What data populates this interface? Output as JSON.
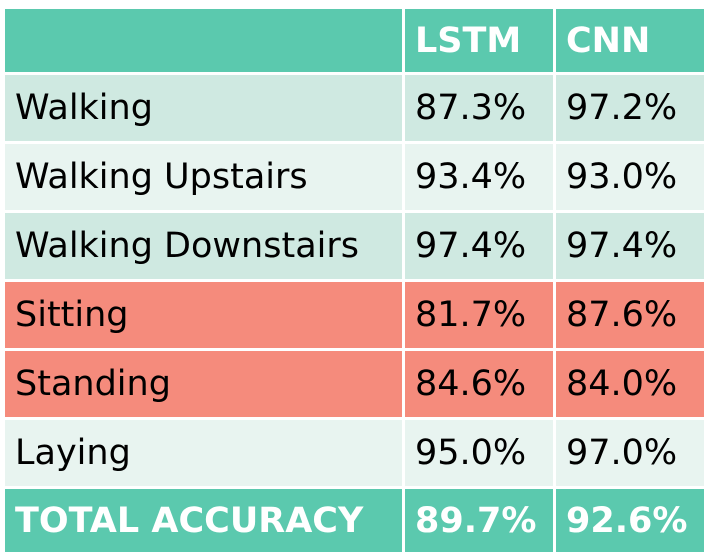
{
  "chart_data": {
    "type": "table",
    "columns": [
      "",
      "LSTM",
      "CNN"
    ],
    "rows": [
      {
        "label": "Walking",
        "values": [
          "87.3%",
          "97.2%"
        ],
        "highlight": "none"
      },
      {
        "label": "Walking Upstairs",
        "values": [
          "93.4%",
          "93.0%"
        ],
        "highlight": "none"
      },
      {
        "label": "Walking Downstairs",
        "values": [
          "97.4%",
          "97.4%"
        ],
        "highlight": "none"
      },
      {
        "label": "Sitting",
        "values": [
          "81.7%",
          "87.6%"
        ],
        "highlight": "red"
      },
      {
        "label": "Standing",
        "values": [
          "84.6%",
          "84.0%"
        ],
        "highlight": "red"
      },
      {
        "label": "Laying",
        "values": [
          "95.0%",
          "97.0%"
        ],
        "highlight": "none"
      }
    ],
    "total": {
      "label": "TOTAL ACCURACY",
      "values": [
        "89.7%",
        "92.6%"
      ]
    }
  },
  "colors": {
    "header_bg": "#5bc9ae",
    "row_dark_bg": "#cfe9e1",
    "row_light_bg": "#e8f4f0",
    "highlight_bg": "#f58b7c",
    "header_text": "#ffffff"
  }
}
